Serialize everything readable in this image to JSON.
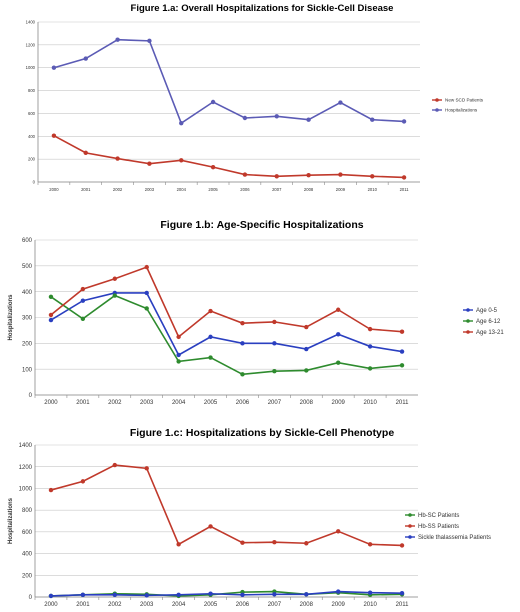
{
  "chart_data": [
    {
      "type": "line",
      "title": "Figure 1.a:  Overall Hospitalizations for Sickle-Cell Disease",
      "xlabel": "",
      "ylabel": "",
      "categories": [
        "2000",
        "2001",
        "2002",
        "2003",
        "2004",
        "2005",
        "2006",
        "2007",
        "2008",
        "2009",
        "2010",
        "2011"
      ],
      "ylim": [
        0,
        1400
      ],
      "yticks": [
        "0",
        "200",
        "400",
        "600",
        "800",
        "1000",
        "1200",
        "1400"
      ],
      "grid": true,
      "legend": "right",
      "series": [
        {
          "name": "New SCD Patients",
          "color": "#c0392b",
          "values": [
            405,
            255,
            205,
            160,
            190,
            130,
            65,
            50,
            60,
            65,
            50,
            40
          ]
        },
        {
          "name": "Hospitalizations",
          "color": "#5b5bb5",
          "values": [
            1000,
            1080,
            1245,
            1235,
            515,
            700,
            560,
            575,
            545,
            695,
            545,
            530
          ]
        }
      ]
    },
    {
      "type": "line",
      "title": "Figure 1.b:  Age-Specific Hospitalizations",
      "xlabel": "",
      "ylabel": "Hospitalizations",
      "categories": [
        "2000",
        "2001",
        "2002",
        "2003",
        "2004",
        "2005",
        "2006",
        "2007",
        "2008",
        "2009",
        "2010",
        "2011"
      ],
      "ylim": [
        0,
        600
      ],
      "yticks": [
        "0",
        "100",
        "200",
        "300",
        "400",
        "500",
        "600"
      ],
      "grid": true,
      "legend": "right",
      "series": [
        {
          "name": "Age 0-5",
          "color": "#2a3fc0",
          "values": [
            290,
            365,
            395,
            395,
            155,
            225,
            200,
            200,
            178,
            235,
            188,
            168
          ]
        },
        {
          "name": "Age 6-12",
          "color": "#2e8b2e",
          "values": [
            380,
            295,
            385,
            335,
            130,
            145,
            80,
            92,
            95,
            125,
            103,
            115
          ]
        },
        {
          "name": "Age 13-21",
          "color": "#c0392b",
          "values": [
            310,
            410,
            450,
            495,
            225,
            325,
            278,
            283,
            263,
            330,
            255,
            245
          ]
        }
      ]
    },
    {
      "type": "line",
      "title": "Figure 1.c:  Hospitalizations by Sickle-Cell Phenotype",
      "xlabel": "",
      "ylabel": "Hospitalizations",
      "categories": [
        "2000",
        "2001",
        "2002",
        "2003",
        "2004",
        "2005",
        "2006",
        "2007",
        "2008",
        "2009",
        "2010",
        "2011"
      ],
      "ylim": [
        0,
        1400
      ],
      "yticks": [
        "0",
        "200",
        "400",
        "600",
        "800",
        "1000",
        "1200",
        "1400"
      ],
      "grid": true,
      "legend": "right",
      "series": [
        {
          "name": "Hb-SC Patients",
          "color": "#2e8b2e",
          "values": [
            10,
            20,
            30,
            25,
            10,
            20,
            45,
            50,
            25,
            40,
            20,
            25
          ]
        },
        {
          "name": "Hb-SS Patients",
          "color": "#c0392b",
          "values": [
            985,
            1065,
            1215,
            1185,
            485,
            650,
            500,
            505,
            495,
            605,
            485,
            475
          ]
        },
        {
          "name": "Sickle thalassemia Patients",
          "color": "#2a3fc0",
          "values": [
            10,
            20,
            20,
            15,
            20,
            30,
            20,
            25,
            25,
            50,
            40,
            35
          ]
        }
      ]
    }
  ]
}
